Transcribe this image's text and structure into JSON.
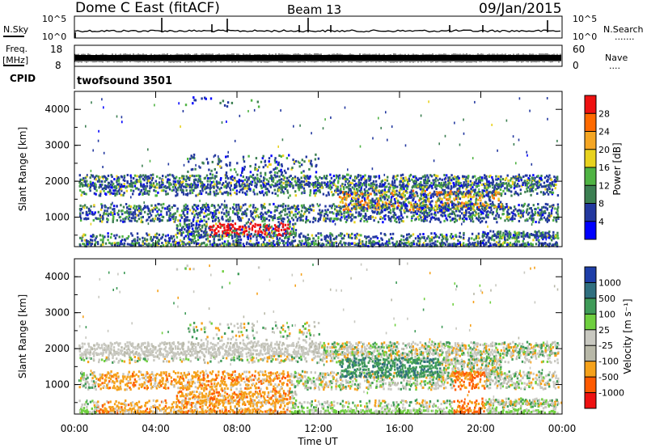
{
  "header": {
    "title": "Dome C East (fitACF)",
    "beam": "Beam 13",
    "date": "09/Jan/2015"
  },
  "top_panels": {
    "nsky_label": "N.Sky",
    "nsky_ticks": [
      "10^5",
      "10^0"
    ],
    "nsearch_label": "N.Search",
    "nsearch_ticks": [
      "10^5",
      "10^0"
    ],
    "freq_label": "Freq.",
    "freq_unit": "[MHz]",
    "freq_ticks": [
      "18",
      "8"
    ],
    "nave_label": "Nave",
    "nave_ticks": [
      "60",
      "0"
    ],
    "cpid_label": "CPID",
    "cpid_value": "twofsound 3501"
  },
  "chart_data": [
    {
      "type": "heatmap",
      "name": "power",
      "ylabel": "Slant Range [km]",
      "xlabel": "",
      "y_ticks": [
        1000,
        2000,
        3000,
        4000
      ],
      "ylim": [
        180,
        4500
      ],
      "x_ticks": [
        "00:00",
        "04:00",
        "08:00",
        "12:00",
        "16:00",
        "20:00",
        "00:00"
      ],
      "xlim_hours": [
        0,
        24
      ],
      "colorbar_label": "Power [dB]",
      "colorbar_ticks": [
        "28",
        "24",
        "20",
        "16",
        "12",
        "8",
        "4"
      ],
      "colorbar_colors": [
        "#ee1111",
        "#ff6a00",
        "#f5a623",
        "#e8d21e",
        "#4fb343",
        "#3c7f52",
        "#23389f",
        "#0000ff"
      ]
    },
    {
      "type": "heatmap",
      "name": "velocity",
      "ylabel": "Slant Range [km]",
      "xlabel": "Time UT",
      "y_ticks": [
        1000,
        2000,
        3000,
        4000
      ],
      "ylim": [
        180,
        4500
      ],
      "x_ticks": [
        "00:00",
        "04:00",
        "08:00",
        "12:00",
        "16:00",
        "20:00",
        "00:00"
      ],
      "xlim_hours": [
        0,
        24
      ],
      "colorbar_label": "Velocity [m s⁻¹]",
      "colorbar_ticks": [
        "1000",
        "500",
        "100",
        "25",
        "-25",
        "-100",
        "-500",
        "-1000"
      ],
      "colorbar_colors": [
        "#1e3ea8",
        "#2f6f7f",
        "#3f9b58",
        "#6fcf3f",
        "#c8c8c0",
        "#b8b8a8",
        "#f5a11a",
        "#ff5a00",
        "#ee1111"
      ]
    }
  ],
  "colors": {
    "axis": "#000000",
    "background": "#ffffff"
  }
}
